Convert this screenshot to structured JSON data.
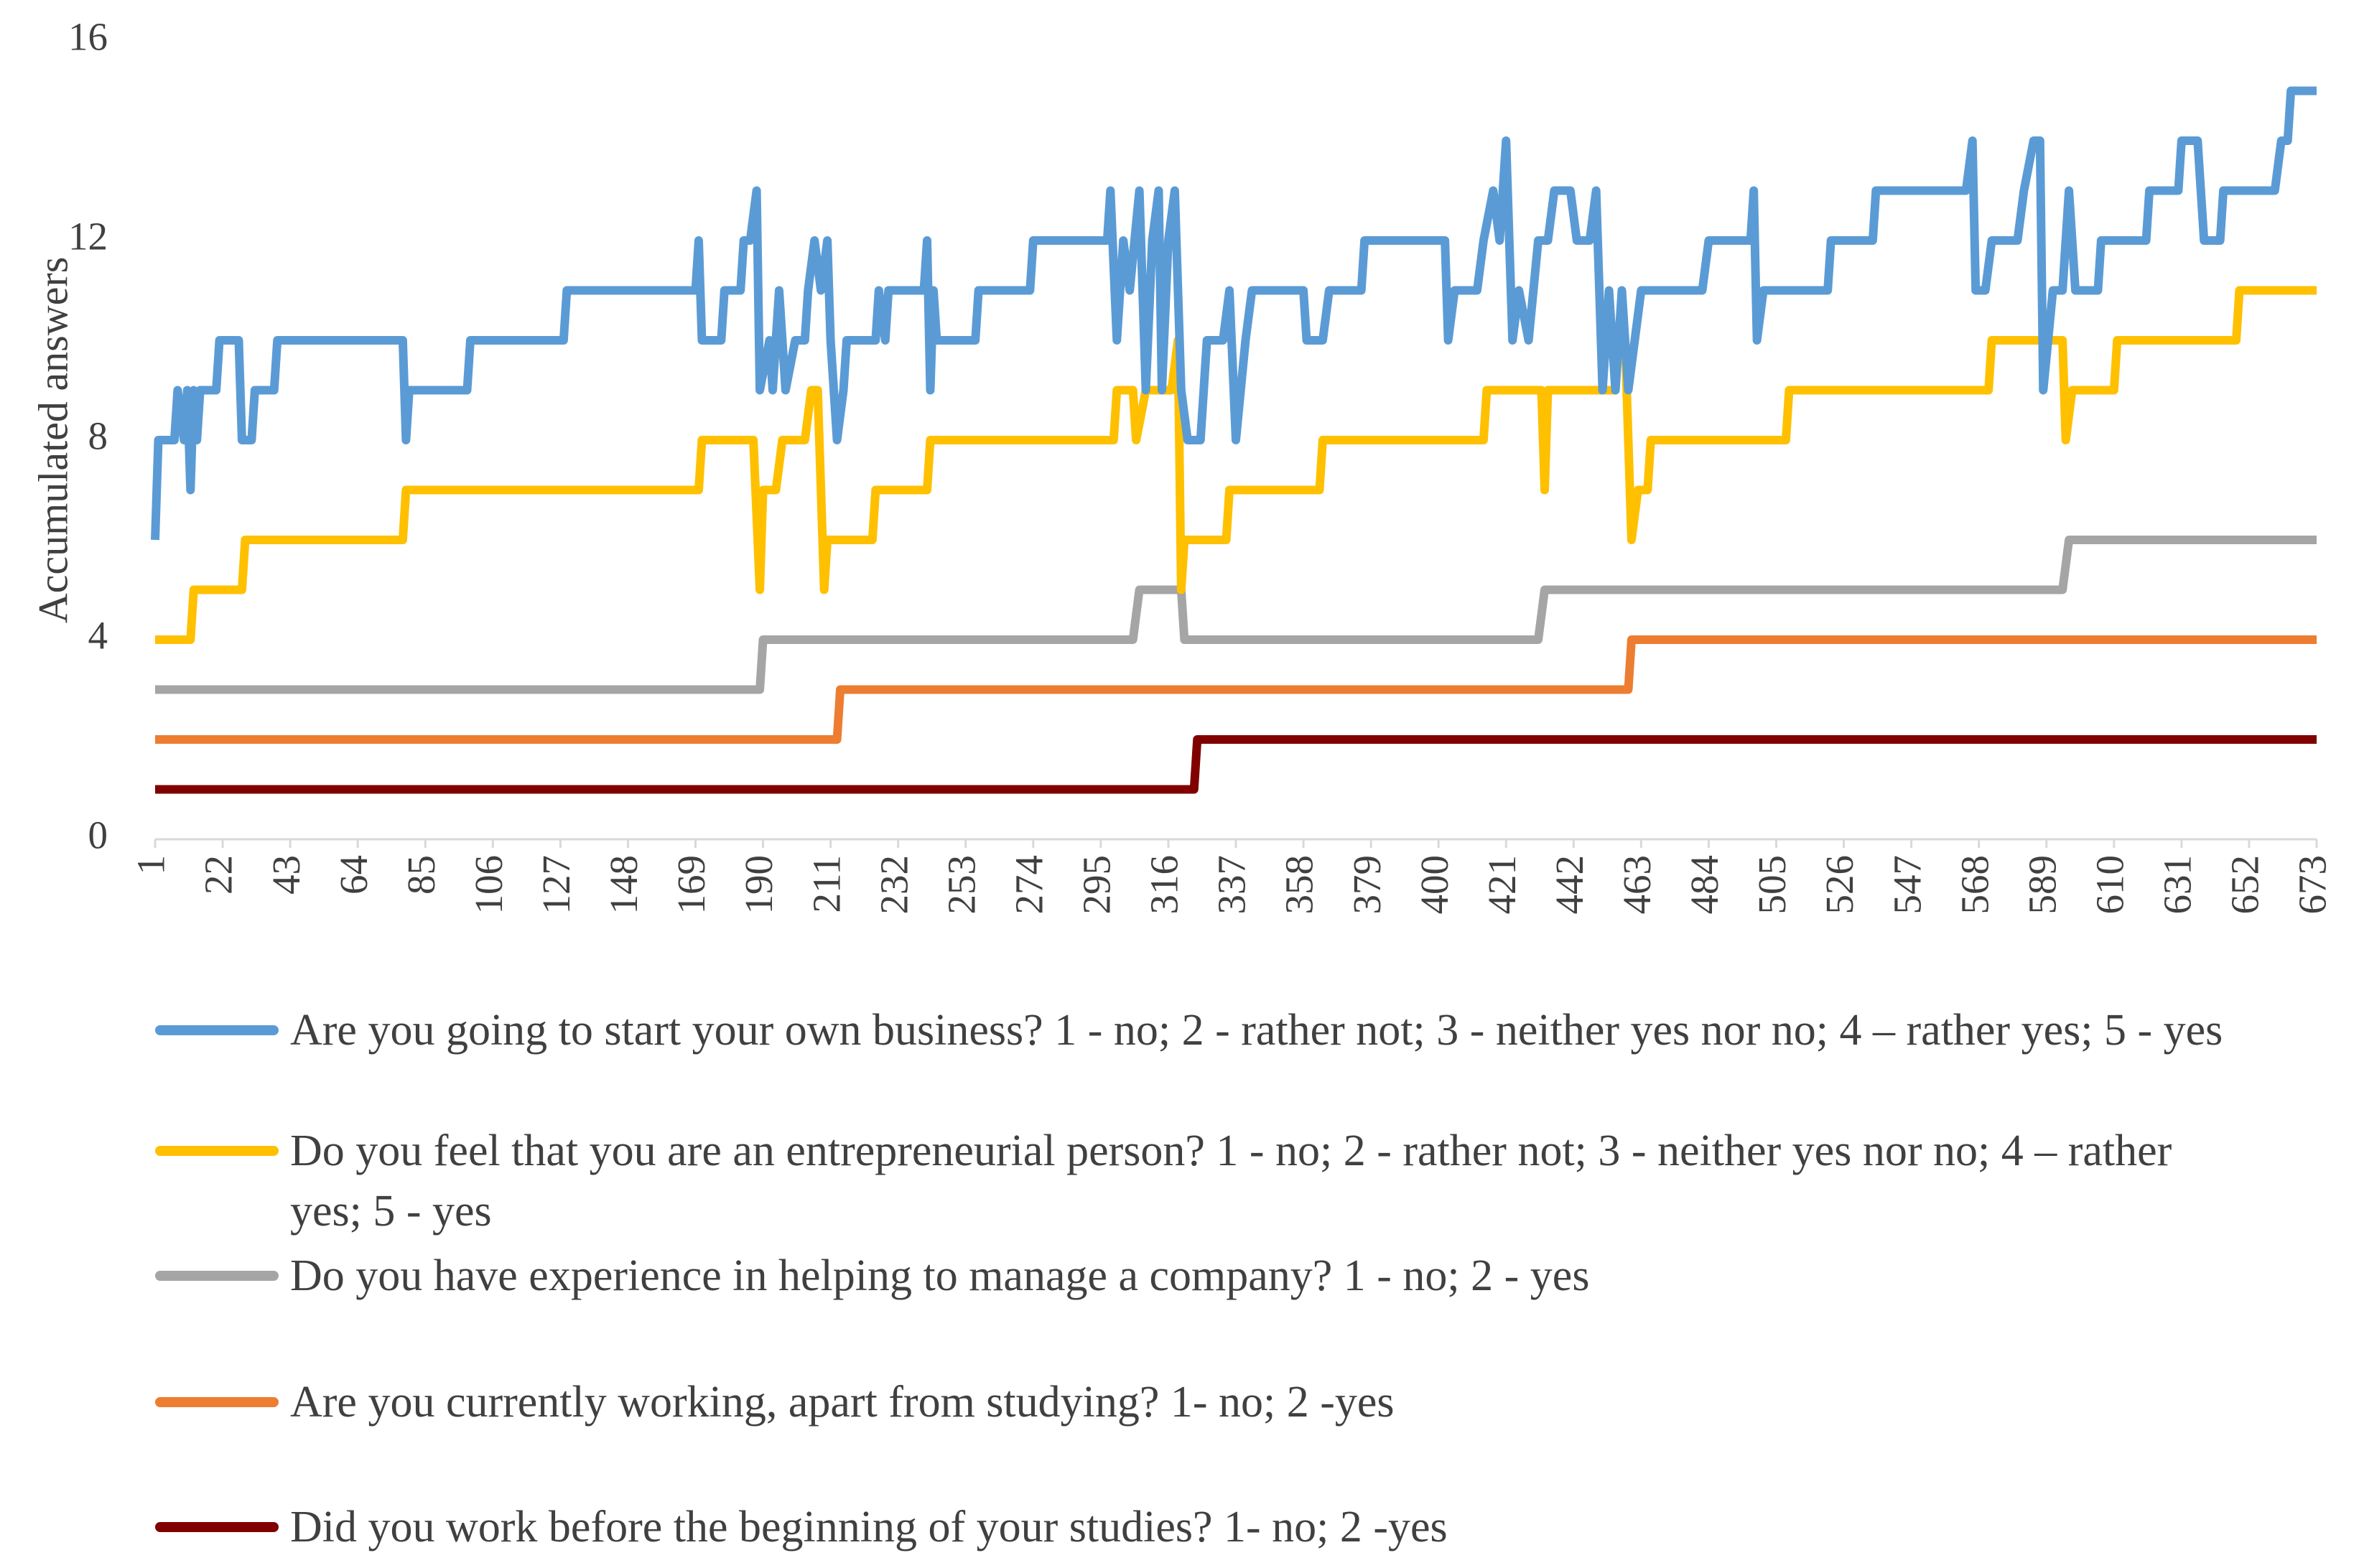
{
  "chart_data": {
    "type": "line",
    "y_axis_label": "Accumulated answers",
    "xlim": [
      1,
      673
    ],
    "xticks": [
      1,
      22,
      43,
      64,
      85,
      106,
      127,
      148,
      169,
      190,
      211,
      232,
      253,
      274,
      295,
      316,
      337,
      358,
      379,
      400,
      421,
      442,
      463,
      484,
      505,
      526,
      547,
      568,
      589,
      610,
      631,
      652,
      673
    ],
    "ylim": [
      0,
      16
    ],
    "yticks": [
      0,
      4,
      8,
      12,
      16
    ],
    "grid": false,
    "series": [
      {
        "name": "Are you going to start your own business? 1 - no; 2 - rather not; 3 - neither yes nor no; 4 – rather yes; 5 - yes",
        "color": "#5b9bd5",
        "x": [
          1,
          2,
          7,
          8,
          10,
          11,
          12,
          13,
          14,
          15,
          20,
          21,
          27,
          28,
          31,
          32,
          38,
          39,
          78,
          79,
          80,
          98,
          99,
          128,
          129,
          169,
          170,
          171,
          177,
          178,
          183,
          184,
          186,
          188,
          189,
          192,
          193,
          195,
          197,
          200,
          203,
          204,
          206,
          208,
          210,
          211,
          213,
          215,
          216,
          225,
          226,
          228,
          229,
          240,
          241,
          242,
          243,
          244,
          256,
          257,
          273,
          274,
          297,
          298,
          300,
          302,
          304,
          307,
          309,
          311,
          313,
          314,
          316,
          318,
          320,
          322,
          326,
          328,
          333,
          335,
          337,
          340,
          342,
          358,
          359,
          364,
          366,
          376,
          377,
          402,
          403,
          405,
          412,
          414,
          417,
          419,
          421,
          423,
          425,
          428,
          431,
          434,
          436,
          441,
          443,
          447,
          449,
          451,
          453,
          455,
          457,
          459,
          461,
          463,
          482,
          484,
          497,
          498,
          499,
          501,
          521,
          522,
          535,
          536,
          564,
          566,
          567,
          570,
          572,
          580,
          582,
          585,
          587,
          588,
          591,
          594,
          596,
          598,
          605,
          606,
          620,
          621,
          630,
          631,
          636,
          638,
          643,
          644,
          660,
          662,
          664,
          665,
          673
        ],
        "values": [
          6,
          8,
          8,
          9,
          8,
          9,
          7,
          9,
          8,
          9,
          9,
          10,
          10,
          8,
          8,
          9,
          9,
          10,
          10,
          8,
          9,
          9,
          10,
          10,
          11,
          11,
          12,
          10,
          10,
          11,
          11,
          12,
          12,
          13,
          9,
          10,
          9,
          11,
          9,
          10,
          10,
          11,
          12,
          11,
          12,
          10,
          8,
          9,
          10,
          10,
          11,
          10,
          11,
          11,
          12,
          9,
          11,
          10,
          10,
          11,
          11,
          12,
          12,
          13,
          10,
          12,
          11,
          13,
          9,
          12,
          13,
          9,
          12,
          13,
          9,
          8,
          8,
          10,
          10,
          11,
          8,
          10,
          11,
          11,
          10,
          10,
          11,
          11,
          12,
          12,
          10,
          11,
          11,
          12,
          13,
          12,
          14,
          10,
          11,
          10,
          12,
          12,
          13,
          13,
          12,
          12,
          13,
          9,
          11,
          9,
          11,
          9,
          10,
          11,
          11,
          12,
          12,
          13,
          10,
          11,
          11,
          12,
          12,
          13,
          13,
          14,
          11,
          11,
          12,
          12,
          13,
          14,
          14,
          9,
          11,
          11,
          13,
          11,
          11,
          12,
          12,
          13,
          13,
          14,
          14,
          12,
          12,
          13,
          13,
          14,
          14,
          15,
          15
        ]
      },
      {
        "name": "Do you feel that you are an entrepreneurial person? 1 - no; 2 - rather not; 3 - neither yes nor no; 4 – rather yes; 5 - yes",
        "color": "#ffc000",
        "x": [
          1,
          12,
          13,
          28,
          29,
          78,
          79,
          170,
          171,
          187,
          189,
          190,
          194,
          196,
          203,
          205,
          207,
          209,
          210,
          224,
          225,
          241,
          242,
          299,
          300,
          305,
          306,
          309,
          317,
          319,
          320,
          321,
          334,
          335,
          363,
          364,
          414,
          415,
          432,
          433,
          434,
          455,
          456,
          458,
          460,
          462,
          465,
          466,
          508,
          509,
          571,
          572,
          594,
          595,
          597,
          610,
          611,
          648,
          649,
          673
        ],
        "values": [
          4,
          4,
          5,
          5,
          6,
          6,
          7,
          7,
          8,
          8,
          5,
          7,
          7,
          8,
          8,
          9,
          9,
          5,
          6,
          6,
          7,
          7,
          8,
          8,
          9,
          9,
          8,
          9,
          9,
          10,
          5,
          6,
          6,
          7,
          7,
          8,
          8,
          9,
          9,
          7,
          9,
          9,
          10,
          10,
          6,
          7,
          7,
          8,
          8,
          9,
          9,
          10,
          10,
          8,
          9,
          9,
          10,
          10,
          11,
          11
        ]
      },
      {
        "name": "Do you have experience in helping to manage a company? 1 - no; 2 - yes",
        "color": "#a5a5a5",
        "x": [
          1,
          189,
          190,
          305,
          307,
          320,
          321,
          431,
          433,
          594,
          596,
          673
        ],
        "values": [
          3,
          3,
          4,
          4,
          5,
          5,
          4,
          4,
          5,
          5,
          6,
          6
        ]
      },
      {
        "name": "Are you currently working, apart from studying? 1- no; 2 -yes",
        "color": "#ed7d31",
        "x": [
          1,
          213,
          214,
          459,
          460,
          673
        ],
        "values": [
          2,
          2,
          3,
          3,
          4,
          4
        ]
      },
      {
        "name": "Did you work before the beginning of your studies? 1- no; 2 -yes",
        "color": "#800000",
        "x": [
          1,
          324,
          325,
          673
        ],
        "values": [
          1,
          1,
          2,
          2
        ]
      }
    ]
  }
}
